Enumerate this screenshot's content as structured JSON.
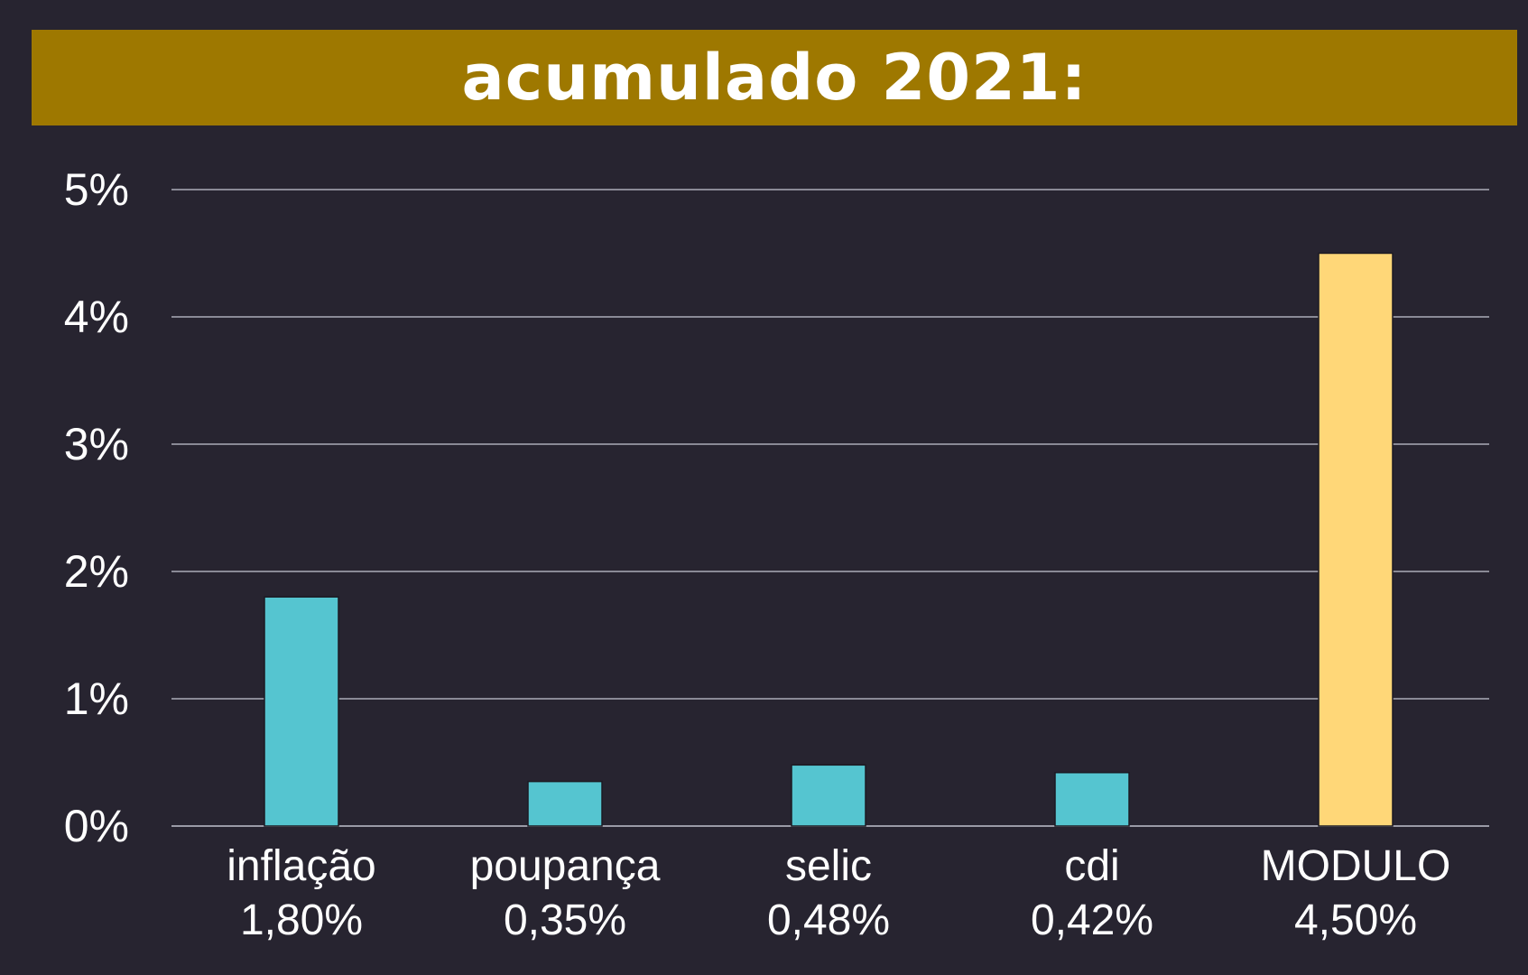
{
  "chart_data": {
    "type": "bar",
    "title": "acumulado 2021:",
    "categories": [
      "inflação",
      "poupança",
      "selic",
      "cdi",
      "MODULO"
    ],
    "values": [
      1.8,
      0.35,
      0.48,
      0.42,
      4.5
    ],
    "value_labels": [
      "1,80%",
      "0,35%",
      "0,48%",
      "0,42%",
      "4,50%"
    ],
    "bar_colors": [
      "#55c5d0",
      "#55c5d0",
      "#55c5d0",
      "#55c5d0",
      "#ffd778"
    ],
    "ylim": [
      0,
      5
    ],
    "yticks": [
      0,
      1,
      2,
      3,
      4,
      5
    ],
    "ytick_labels": [
      "0%",
      "1%",
      "2%",
      "3%",
      "4%",
      "5%"
    ],
    "grid": true,
    "legend": "none",
    "colors": {
      "background": "#272430",
      "title_bar": "#9e7800",
      "grid": "#8a8a96"
    }
  }
}
